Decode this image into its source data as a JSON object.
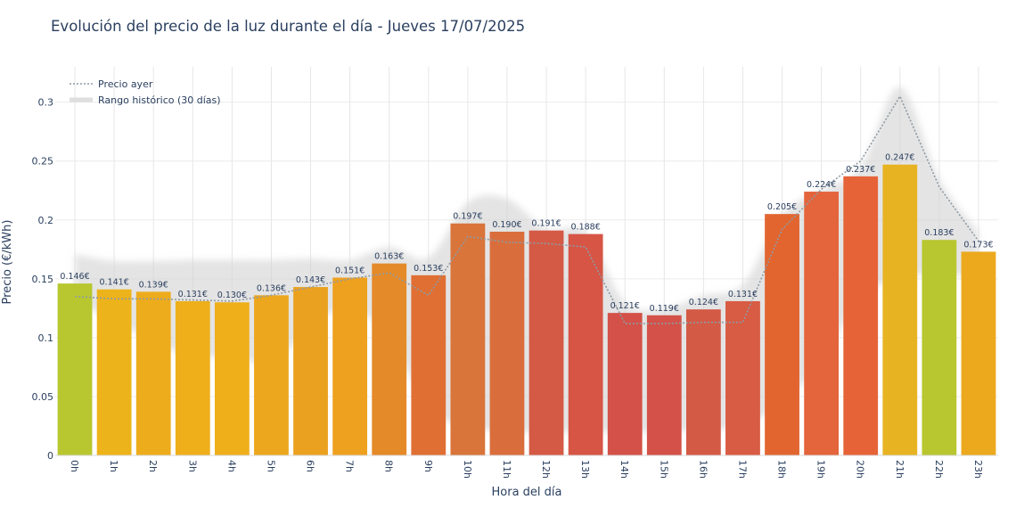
{
  "chart_data": {
    "type": "bar",
    "title": "Evolución del precio de la luz durante el día - Jueves 17/07/2025",
    "xlabel": "Hora del día",
    "ylabel": "Precio (€/kWh)",
    "categories": [
      "0h",
      "1h",
      "2h",
      "3h",
      "4h",
      "5h",
      "6h",
      "7h",
      "8h",
      "9h",
      "10h",
      "11h",
      "12h",
      "13h",
      "14h",
      "15h",
      "16h",
      "17h",
      "18h",
      "19h",
      "20h",
      "21h",
      "22h",
      "23h"
    ],
    "values": [
      0.146,
      0.141,
      0.139,
      0.131,
      0.13,
      0.136,
      0.143,
      0.151,
      0.163,
      0.153,
      0.197,
      0.19,
      0.191,
      0.188,
      0.121,
      0.119,
      0.124,
      0.131,
      0.205,
      0.224,
      0.237,
      0.247,
      0.183,
      0.173
    ],
    "value_labels": [
      "0.146€",
      "0.141€",
      "0.139€",
      "0.131€",
      "0.130€",
      "0.136€",
      "0.143€",
      "0.151€",
      "0.163€",
      "0.153€",
      "0.197€",
      "0.190€",
      "0.191€",
      "0.188€",
      "0.121€",
      "0.119€",
      "0.124€",
      "0.131€",
      "0.205€",
      "0.224€",
      "0.237€",
      "0.247€",
      "0.183€",
      "0.173€"
    ],
    "series": [
      {
        "name": "Precio ayer",
        "style": "dotted-line",
        "color": "#8f9aa3",
        "values": [
          0.135,
          0.133,
          0.133,
          0.132,
          0.131,
          0.136,
          0.143,
          0.15,
          0.155,
          0.136,
          0.186,
          0.181,
          0.18,
          0.177,
          0.112,
          0.112,
          0.113,
          0.113,
          0.192,
          0.226,
          0.25,
          0.305,
          0.228,
          0.182
        ]
      },
      {
        "name": "Rango histórico (30 días)",
        "style": "band",
        "color": "#d9d9d9",
        "lower": [
          0.132,
          0.114,
          0.098,
          0.083,
          0.085,
          0.078,
          0.11,
          0.125,
          0.1,
          0.04,
          0.025,
          0.02,
          0.02,
          0.02,
          0.02,
          0.02,
          0.022,
          0.025,
          0.045,
          0.08,
          0.135,
          0.15,
          0.155,
          0.15
        ],
        "upper": [
          0.171,
          0.165,
          0.165,
          0.166,
          0.166,
          0.166,
          0.167,
          0.166,
          0.177,
          0.168,
          0.215,
          0.218,
          0.192,
          0.19,
          0.13,
          0.125,
          0.136,
          0.145,
          0.205,
          0.225,
          0.245,
          0.313,
          0.235,
          0.19
        ]
      }
    ],
    "bar_colors": [
      "#b8c72f",
      "#edb31a",
      "#edac1c",
      "#eeaf1b",
      "#eeaf1b",
      "#eca71e",
      "#eba120",
      "#eea11f",
      "#e58a28",
      "#e06f33",
      "#d9743a",
      "#d96e3c",
      "#d55a45",
      "#d65545",
      "#d35148",
      "#d35148",
      "#d35a45",
      "#d85b43",
      "#e26530",
      "#e4643b",
      "#e66338",
      "#e8b322",
      "#b8c62f",
      "#eca91e"
    ],
    "yticks": [
      "0",
      "0.05",
      "0.1",
      "0.15",
      "0.2",
      "0.25",
      "0.3"
    ],
    "ytick_values": [
      0,
      0.05,
      0.1,
      0.15,
      0.2,
      0.25,
      0.3
    ],
    "ylim": [
      0,
      0.33
    ],
    "legend": [
      "Precio ayer",
      "Rango histórico (30 días)"
    ],
    "legend_position": "top-left",
    "grid": true
  }
}
